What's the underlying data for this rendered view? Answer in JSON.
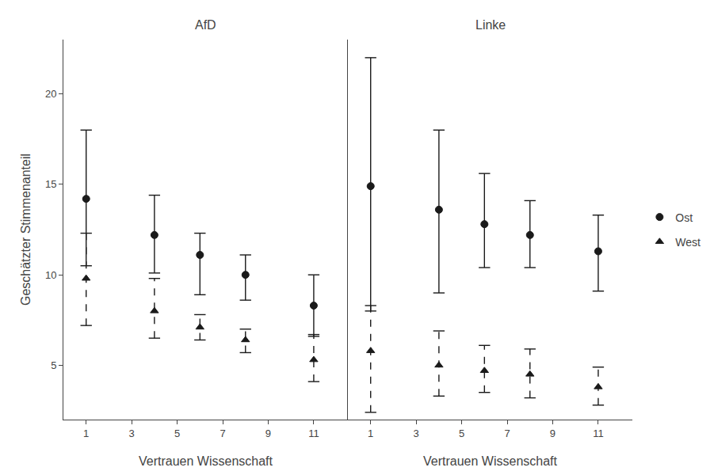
{
  "chart_data": [
    {
      "type": "scatter",
      "title": "AfD",
      "x_label": "Vertrauen Wissenschaft",
      "y_label": "Geschätzter Stimmenanteil",
      "x": [
        1,
        4,
        6,
        8,
        11
      ],
      "series": [
        {
          "name": "Ost",
          "color": "#1a1a1a",
          "marker": "circle",
          "line_style": "solid",
          "values": [
            14.2,
            12.2,
            11.1,
            10.0,
            8.3
          ],
          "lower": [
            10.5,
            10.1,
            8.9,
            8.6,
            6.6
          ],
          "upper": [
            18.0,
            14.4,
            12.3,
            11.1,
            10.0
          ]
        },
        {
          "name": "West",
          "color": "#1a1a1a",
          "marker": "triangle",
          "line_style": "dashed",
          "values": [
            9.8,
            8.0,
            7.1,
            6.4,
            5.3
          ],
          "lower": [
            7.2,
            6.5,
            6.4,
            5.7,
            4.1
          ],
          "upper": [
            12.3,
            9.8,
            7.8,
            7.0,
            6.7
          ]
        }
      ],
      "xlim": [
        0,
        12.5
      ],
      "ylim": [
        2,
        23
      ],
      "xticks": [
        1,
        3,
        5,
        7,
        9,
        11
      ],
      "yticks": [
        5,
        10,
        15,
        20
      ],
      "grid": false
    },
    {
      "type": "scatter",
      "title": "Linke",
      "x_label": "Vertrauen Wissenschaft",
      "x": [
        1,
        4,
        6,
        8,
        11
      ],
      "series": [
        {
          "name": "Ost",
          "color": "#1a1a1a",
          "marker": "circle",
          "line_style": "solid",
          "values": [
            14.9,
            13.6,
            12.8,
            12.2,
            11.3
          ],
          "lower": [
            8.0,
            9.0,
            10.4,
            10.4,
            9.1
          ],
          "upper": [
            22.0,
            18.0,
            15.6,
            14.1,
            13.3
          ]
        },
        {
          "name": "West",
          "color": "#1a1a1a",
          "marker": "triangle",
          "line_style": "dashed",
          "values": [
            5.8,
            5.0,
            4.7,
            4.5,
            3.8
          ],
          "lower": [
            2.4,
            3.3,
            3.5,
            3.2,
            2.8
          ],
          "upper": [
            8.3,
            6.9,
            6.1,
            5.9,
            4.9
          ]
        }
      ],
      "xlim": [
        0,
        12.5
      ],
      "ylim": [
        2,
        23
      ],
      "xticks": [
        1,
        3,
        5,
        7,
        9,
        11
      ],
      "yticks": [
        5,
        10,
        15,
        20
      ],
      "grid": false,
      "tick_labels": "x",
      "legend": "right"
    }
  ]
}
